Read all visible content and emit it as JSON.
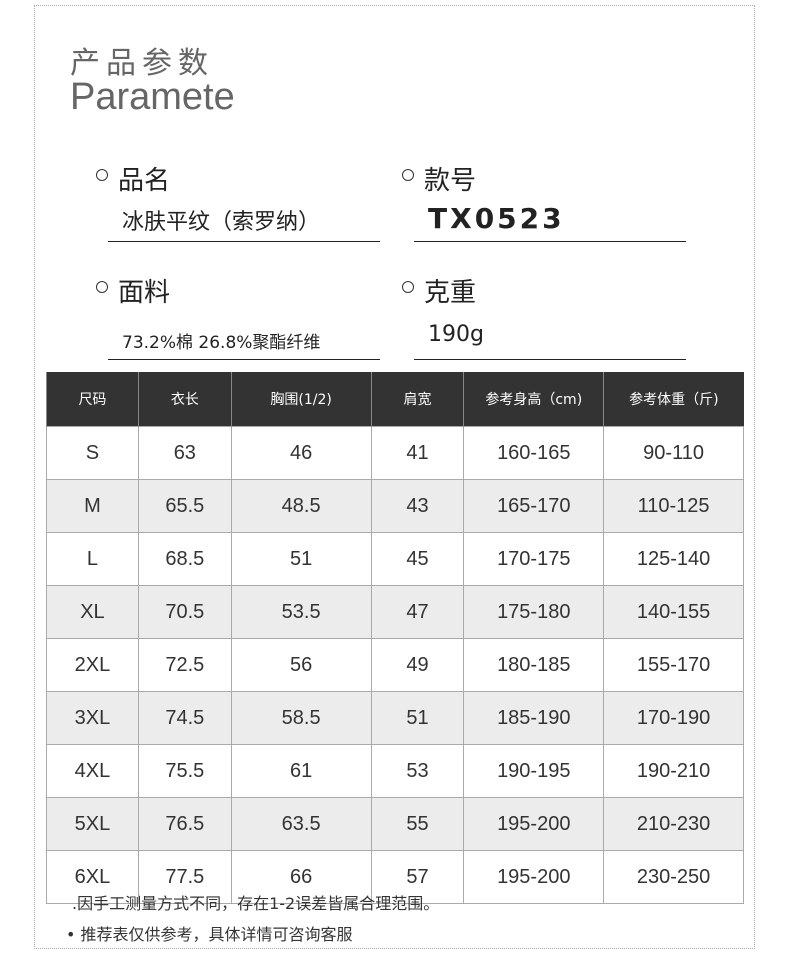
{
  "header": {
    "title_cn": "产品参数",
    "title_en": "Paramete"
  },
  "fields": {
    "name": {
      "label": "品名",
      "value": "冰肤平纹（索罗纳）"
    },
    "style": {
      "label": "款号",
      "value": "TX0523"
    },
    "fabric": {
      "label": "面料",
      "value": "73.2%棉 26.8%聚酯纤维"
    },
    "weight": {
      "label": "克重",
      "value": "190g"
    }
  },
  "table": {
    "headers": [
      "尺码",
      "衣长",
      "胸围(1/2)",
      "肩宽",
      "参考身高（cm)",
      "参考体重（斤)"
    ],
    "rows": [
      [
        "S",
        "63",
        "46",
        "41",
        "160-165",
        "90-110"
      ],
      [
        "M",
        "65.5",
        "48.5",
        "43",
        "165-170",
        "110-125"
      ],
      [
        "L",
        "68.5",
        "51",
        "45",
        "170-175",
        "125-140"
      ],
      [
        "XL",
        "70.5",
        "53.5",
        "47",
        "175-180",
        "140-155"
      ],
      [
        "2XL",
        "72.5",
        "56",
        "49",
        "180-185",
        "155-170"
      ],
      [
        "3XL",
        "74.5",
        "58.5",
        "51",
        "185-190",
        "170-190"
      ],
      [
        "4XL",
        "75.5",
        "61",
        "53",
        "190-195",
        "190-210"
      ],
      [
        "5XL",
        "76.5",
        "63.5",
        "55",
        "195-200",
        "210-230"
      ],
      [
        "6XL",
        "77.5",
        "66",
        "57",
        "195-200",
        "230-250"
      ]
    ]
  },
  "notes": [
    ".因手工测量方式不同，存在1-2误差皆属合理范围。",
    "• 推荐表仅供参考，具体详情可咨询客服"
  ]
}
